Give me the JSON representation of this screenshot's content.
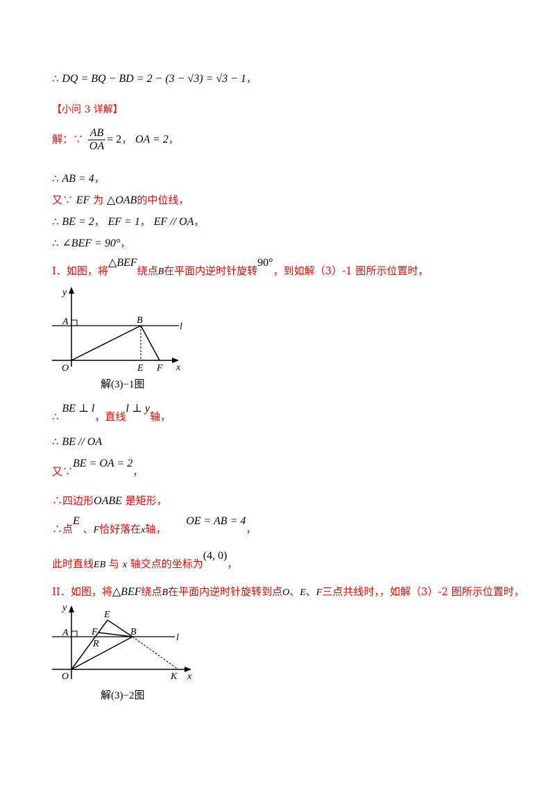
{
  "l1": {
    "sym": "∴",
    "math": "DQ = BQ − BD = 2 − (3 − √3) = √3 − 1",
    "end": "，"
  },
  "l2": {
    "text": "【小问 3 详解】"
  },
  "l3": {
    "pre": "解：∵",
    "num": "AB",
    "den": "OA",
    "eq": "= 2",
    "sep": "，",
    "math": "OA = 2",
    "end": "，"
  },
  "l4": {
    "sym": "∴",
    "math": "AB = 4",
    "end": "，"
  },
  "l5": {
    "pre": "又∵",
    "m1": "EF",
    "t1": "为",
    "m2": "△OAB",
    "t2": "的中位线，"
  },
  "l6": {
    "sym": "∴",
    "m1": "BE = 2",
    "s1": "，",
    "m2": "EF = 1",
    "s2": "，",
    "m3": "EF // OA",
    "end": "，"
  },
  "l7": {
    "sym": "∴",
    "math": "∠BEF = 90°",
    "end": "，"
  },
  "l8": {
    "pre": "I．如图，将",
    "m1": "△BEF",
    "t1": "绕点",
    "m2": "B",
    "t2": "在平面内逆时针旋转",
    "m3": "90°",
    "t3": "，到如解（3）-1 图所示位置时，"
  },
  "fig1": {
    "labels": {
      "y": "y",
      "x": "x",
      "a": "A",
      "b": "B",
      "o": "O",
      "e": "E",
      "f": "F",
      "l": "l"
    },
    "caption": "解(3)−1图"
  },
  "l9": {
    "sym": "∴",
    "m1": "BE ⊥ l",
    "t1": "，直线",
    "m2": "l ⊥ y",
    "t2": "轴，"
  },
  "l10": {
    "sym": "∴",
    "math": "BE // OA"
  },
  "l11": {
    "pre": "又∵",
    "math": "BE = OA = 2",
    "end": "，"
  },
  "l12": {
    "pre": "∴四边形",
    "math": "OABE",
    "post": "是矩形，"
  },
  "l13": {
    "pre": "∴点",
    "m1": "E",
    "t1": "、",
    "m2": "F",
    "t2": "恰好落在",
    "m3": "x",
    "t3": "轴，",
    "m4": "OE = AB = 4",
    "end": "，"
  },
  "l14": {
    "pre": "此时直线",
    "m1": "EB",
    "t1": "与",
    "m2": "x",
    "t2": "轴交点的坐标为",
    "m3": "(4, 0)",
    "end": "，"
  },
  "l15": {
    "pre": "II．如图，将",
    "m1": "△BEF",
    "t1": "绕点",
    "m2": "B",
    "t2": "在平面内逆时针旋转到点",
    "m3": "O",
    "s1": "、",
    "m4": "E",
    "s2": "、",
    "m5": "F",
    "t3": "三点共线时，，如解（3）-2 图所示位置时，"
  },
  "fig2": {
    "labels": {
      "y": "y",
      "x": "x",
      "a": "A",
      "e": "E",
      "f": "F",
      "r": "R",
      "b": "B",
      "o": "O",
      "k": "K",
      "l": "l"
    },
    "caption": "解(3)−2图"
  }
}
